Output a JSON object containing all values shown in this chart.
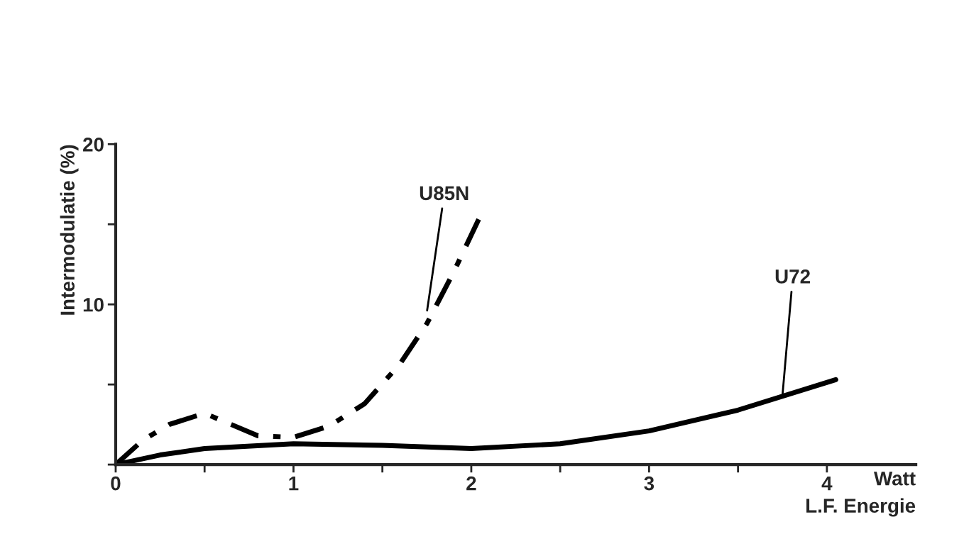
{
  "chart_data": {
    "type": "line",
    "xlabel": "L.F. Energie",
    "ylabel": "Intermodulatie (%)",
    "xlim": [
      0,
      4.5
    ],
    "ylim": [
      0,
      20
    ],
    "xticks": [
      0,
      {
        "value": 0.5,
        "label": null
      },
      1,
      {
        "value": 1.5,
        "label": null
      },
      2,
      {
        "value": 2.5,
        "label": null
      },
      3,
      {
        "value": 3.5,
        "label": null
      },
      4
    ],
    "yticks": [
      {
        "value": 0,
        "label": null
      },
      {
        "value": 5,
        "label": null
      },
      10,
      {
        "value": 15,
        "label": null
      },
      20
    ],
    "grid": false,
    "legend": false,
    "marker": "none",
    "series": [
      {
        "color": "#000000",
        "line_style": "dashed",
        "x": [
          0,
          0.15,
          0.3,
          0.5,
          0.65,
          0.8,
          1.0,
          1.2,
          1.4,
          1.6,
          1.75,
          1.9,
          2.05
        ],
        "values": [
          0,
          1.5,
          2.5,
          3.2,
          2.5,
          1.8,
          1.7,
          2.4,
          3.8,
          6.3,
          8.8,
          12.0,
          15.5
        ]
      },
      {
        "color": "#000000",
        "line_style": "solid",
        "x": [
          0,
          0.25,
          0.5,
          1.0,
          1.5,
          2.0,
          2.5,
          3.0,
          3.5,
          4.05
        ],
        "values": [
          0,
          0.6,
          1.0,
          1.3,
          1.2,
          1.0,
          1.3,
          2.1,
          3.4,
          5.3
        ]
      }
    ],
    "annotations": [
      {
        "text": "U85N",
        "x": 1.75,
        "y": 9.5
      },
      {
        "text": "U72",
        "x": 3.75,
        "y": 4.3
      },
      "Watt"
    ]
  }
}
